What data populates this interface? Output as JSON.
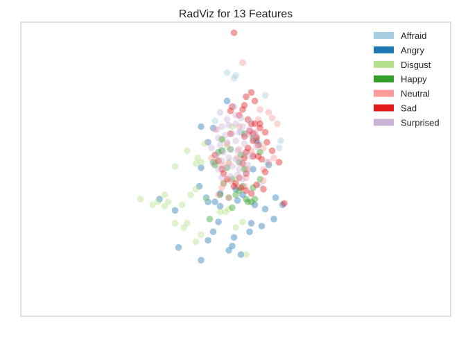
{
  "chart_data": {
    "type": "scatter",
    "title": "RadViz for 13 Features",
    "xlabel": "",
    "ylabel": "",
    "grid": false,
    "legend_position": "top-right",
    "marker_alpha": 0.42,
    "xlim": [
      -1.0,
      1.0
    ],
    "ylim": [
      -1.0,
      1.0
    ],
    "series": [
      {
        "name": "Affraid",
        "color": "#a6cee3",
        "x": [
          -0.12,
          0.17,
          -0.05,
          -0.01,
          0.14,
          0.26,
          0.25,
          0.18,
          0.03,
          -0.08,
          0.0,
          0.14
        ],
        "y": [
          0.34,
          0.52,
          0.68,
          0.64,
          0.18,
          0.2,
          0.15,
          0.05,
          0.26,
          0.13,
          0.66,
          -0.11
        ]
      },
      {
        "name": "Angry",
        "color": "#1f78b4",
        "x": [
          -0.35,
          -0.44,
          -0.17,
          -0.21,
          -0.16,
          -0.12,
          -0.09,
          0.01,
          0.04,
          0.09,
          0.15,
          0.22,
          -0.1,
          -0.13,
          -0.16,
          -0.01,
          -0.02,
          -0.04,
          0.03,
          -0.33,
          -0.2,
          0.08,
          0.11,
          0.17,
          -0.09,
          0.0,
          0.1,
          0.23,
          0.27,
          0.19,
          0.12,
          -0.05,
          -0.13,
          -0.2,
          -0.16,
          -0.2
        ],
        "y": [
          -0.29,
          -0.21,
          -0.2,
          -0.12,
          -0.23,
          -0.23,
          -0.17,
          -0.22,
          -0.18,
          -0.38,
          -0.4,
          -0.35,
          -0.37,
          -0.44,
          -0.5,
          -0.48,
          -0.54,
          -0.57,
          -0.6,
          -0.55,
          -0.64,
          -0.44,
          -0.25,
          -0.28,
          -0.26,
          -0.14,
          0.0,
          -0.2,
          -0.25,
          0.03,
          0.2,
          0.48,
          0.29,
          0.3,
          0.19,
          0.01
        ]
      },
      {
        "name": "Disgust",
        "color": "#b2df8a",
        "x": [
          -0.41,
          -0.55,
          -0.45,
          -0.39,
          -0.48,
          -0.41,
          -0.31,
          -0.26,
          -0.23,
          -0.17,
          -0.09,
          -0.04,
          -0.28,
          -0.35,
          -0.2,
          -0.23,
          -0.3,
          -0.06,
          0.0,
          0.06,
          0.04,
          0.06,
          -0.23,
          -0.22,
          -0.04,
          -0.2,
          -0.05,
          -0.12,
          -0.08,
          0.05,
          -0.35,
          -0.28,
          -0.18,
          -0.02
        ],
        "y": [
          -0.18,
          -0.21,
          -0.23,
          -0.23,
          -0.25,
          -0.26,
          -0.25,
          -0.18,
          -0.14,
          -0.21,
          -0.3,
          -0.28,
          -0.38,
          -0.38,
          -0.46,
          -0.51,
          -0.41,
          -0.3,
          -0.41,
          -0.6,
          -0.37,
          0.0,
          0.04,
          0.08,
          0.05,
          0.05,
          0.16,
          0.05,
          0.21,
          0.1,
          0.02,
          0.13,
          0.18,
          0.3
        ]
      },
      {
        "name": "Happy",
        "color": "#33a02c",
        "x": [
          -0.04,
          0.06,
          0.09,
          0.11,
          0.04,
          0.02,
          -0.07,
          -0.02,
          0.0,
          0.07,
          0.1,
          0.14,
          -0.15,
          -0.12,
          -0.13,
          -0.09,
          -0.02,
          0.05,
          -0.05,
          0.02,
          0.14,
          0.05,
          0.1,
          -0.1,
          -0.08,
          -0.03,
          0.03,
          -0.08
        ],
        "y": [
          -0.2,
          -0.21,
          -0.23,
          -0.21,
          -0.12,
          -0.15,
          -0.1,
          -0.07,
          -0.18,
          -0.23,
          -0.13,
          -0.07,
          -0.35,
          0.03,
          0.05,
          -0.18,
          -0.27,
          0.0,
          0.01,
          0.05,
          0.12,
          0.25,
          0.22,
          0.12,
          0.13,
          0.14,
          0.1,
          0.21
        ]
      },
      {
        "name": "Neutral",
        "color": "#fb9a99",
        "x": [
          0.04,
          0.14,
          0.19,
          0.21,
          0.24,
          0.16,
          0.09,
          0.02,
          -0.04,
          0.07,
          -0.03,
          -0.08,
          -0.1,
          -0.04,
          0.06,
          -0.11,
          0.02,
          0.13,
          0.11,
          0.07,
          -0.14,
          -0.05,
          0.12,
          0.16,
          0.01,
          -0.08,
          -0.07,
          0.05,
          0.16,
          0.19,
          0.22,
          0.1
        ],
        "y": [
          0.75,
          0.42,
          0.4,
          0.36,
          0.32,
          0.15,
          0.13,
          0.14,
          0.04,
          0.0,
          -0.08,
          -0.13,
          -0.18,
          -0.2,
          -0.06,
          0.28,
          0.3,
          0.35,
          0.26,
          0.25,
          0.08,
          0.18,
          0.23,
          -0.08,
          0.08,
          0.03,
          -0.1,
          -0.12,
          0.0,
          0.05,
          0.08,
          0.1
        ]
      },
      {
        "name": "Sad",
        "color": "#e31a1c",
        "x": [
          -0.01,
          0.06,
          0.09,
          0.11,
          0.05,
          0.04,
          -0.03,
          -0.02,
          0.02,
          0.07,
          0.09,
          0.11,
          0.14,
          0.17,
          0.12,
          0.13,
          0.07,
          0.1,
          0.13,
          0.05,
          0.04,
          0.06,
          0.02,
          -0.05,
          -0.07,
          -0.08,
          -0.1,
          -0.12,
          0.0,
          0.16,
          0.12,
          0.09,
          0.06,
          0.03,
          -0.01,
          0.05,
          0.1,
          0.14,
          0.18,
          0.21,
          0.25,
          0.28,
          0.15,
          0.17,
          -0.03,
          0.08,
          0.1,
          0.06
        ],
        "y": [
          0.96,
          0.51,
          0.54,
          0.48,
          0.45,
          0.42,
          0.41,
          0.44,
          0.38,
          0.35,
          0.32,
          0.32,
          0.29,
          0.26,
          0.22,
          0.17,
          0.15,
          0.09,
          0.09,
          0.08,
          0.04,
          -0.03,
          -0.06,
          -0.07,
          -0.03,
          0.0,
          0.06,
          0.1,
          -0.1,
          -0.14,
          -0.11,
          -0.17,
          -0.15,
          -0.13,
          -0.12,
          0.23,
          0.25,
          0.32,
          0.19,
          0.13,
          0.05,
          -0.24,
          0.07,
          -0.02,
          0.25,
          0.27,
          0.2,
          0.12
        ]
      },
      {
        "name": "Surprised",
        "color": "#cab2d6",
        "x": [
          -0.12,
          -0.08,
          -0.04,
          0.0,
          0.04,
          0.08,
          0.11,
          -0.1,
          -0.06,
          -0.02,
          0.02,
          0.06,
          0.1,
          -0.14,
          -0.09,
          -0.05,
          0.0,
          0.05,
          -0.11,
          -0.07,
          -0.03,
          0.01,
          0.05,
          0.09,
          -0.13,
          -0.08,
          -0.04,
          0.0,
          0.03,
          0.07,
          -0.1,
          -0.06,
          -0.02,
          0.02,
          0.06,
          -0.08,
          -0.03,
          0.01,
          0.04,
          -0.05,
          0.0,
          -0.16,
          0.12,
          0.08,
          -0.09,
          -0.01,
          0.03
        ],
        "y": [
          0.28,
          0.3,
          0.31,
          0.32,
          0.3,
          0.28,
          0.25,
          0.22,
          0.24,
          0.25,
          0.26,
          0.24,
          0.22,
          0.15,
          0.17,
          0.19,
          0.2,
          0.18,
          0.1,
          0.12,
          0.14,
          0.13,
          0.11,
          0.09,
          0.04,
          0.06,
          0.08,
          0.07,
          0.05,
          0.03,
          0.0,
          0.01,
          0.02,
          0.0,
          -0.02,
          -0.06,
          -0.05,
          -0.04,
          -0.07,
          0.35,
          0.38,
          0.19,
          0.16,
          0.34,
          0.4,
          0.44,
          0.36
        ]
      }
    ]
  }
}
